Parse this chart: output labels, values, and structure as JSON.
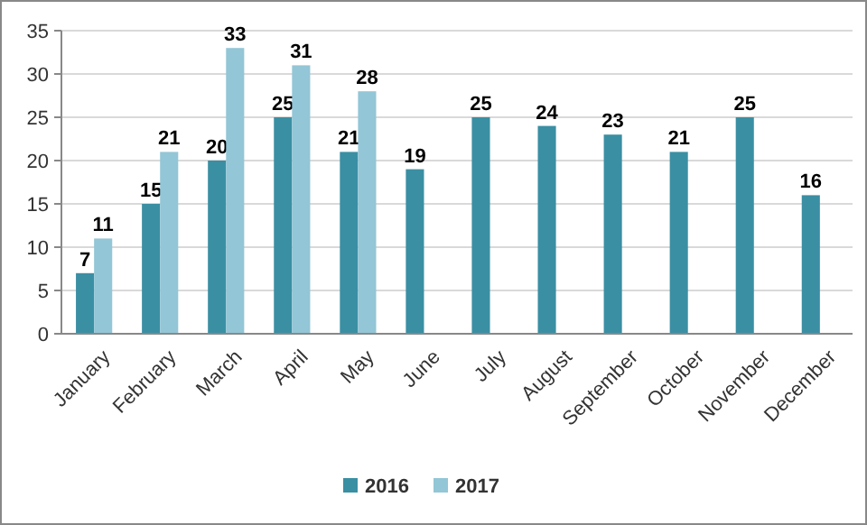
{
  "chart_data": {
    "type": "bar",
    "categories": [
      "January",
      "February",
      "March",
      "April",
      "May",
      "June",
      "July",
      "August",
      "September",
      "October",
      "November",
      "December"
    ],
    "series": [
      {
        "name": "2016",
        "color": "#3a8fa3",
        "values": [
          7,
          15,
          20,
          25,
          21,
          19,
          25,
          24,
          23,
          21,
          25,
          16
        ]
      },
      {
        "name": "2017",
        "color": "#93c6d6",
        "values": [
          11,
          21,
          33,
          31,
          28,
          null,
          null,
          null,
          null,
          null,
          null,
          null
        ]
      }
    ],
    "ylim": [
      0,
      35
    ],
    "yticks": [
      0,
      5,
      10,
      15,
      20,
      25,
      30,
      35
    ],
    "grid": "y",
    "legend": "bottom",
    "data_labels": true
  }
}
